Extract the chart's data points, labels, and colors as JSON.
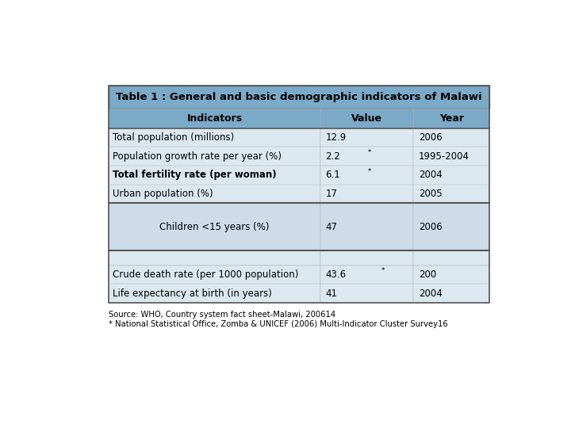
{
  "title": "Table 1 : General and basic demographic indicators of Malawi",
  "col_headers": [
    "Indicators",
    "Value",
    "Year"
  ],
  "rows": [
    [
      "Total population (millions)",
      "12.9",
      "2006",
      false,
      false
    ],
    [
      "Population growth rate per year (%)",
      "2.2",
      "1995-2004",
      true,
      false
    ],
    [
      "Total fertility rate (per woman)",
      "6.1",
      "2004",
      true,
      true
    ],
    [
      "Urban population (%)",
      "17",
      "2005",
      false,
      false
    ],
    [
      "Children <15 years (%)",
      "47",
      "2006",
      false,
      false
    ],
    [
      "Crude death rate (per 1000 population)",
      "43.6",
      "200",
      true,
      false
    ],
    [
      "Life expectancy at birth (in years)",
      "41",
      "2004",
      false,
      false
    ]
  ],
  "header_bg": "#7baac8",
  "title_bg": "#7baac8",
  "row_bg": "#dce8f0",
  "children_bg": "#cddce8",
  "group_border_color": "#555555",
  "border_color": "#aaaaaa",
  "source_text": "Source: WHO, Country system fact sheet-Malawi, 200614\n* National Statistical Office, Zomba & UNICEF (2006) Multi-Indicator Cluster Survey16",
  "title_fontsize": 9.5,
  "header_fontsize": 9,
  "cell_fontsize": 8.5
}
